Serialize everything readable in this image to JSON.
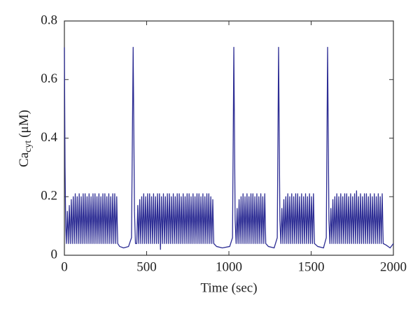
{
  "chart_data": {
    "type": "line",
    "xlabel": "Time (sec)",
    "ylabel": {
      "base": "Ca",
      "sub": "cyt",
      "unit": "(μM)"
    },
    "color": "#2d2d94",
    "xlim": [
      0,
      2000
    ],
    "xticks": [
      0,
      500,
      1000,
      1500,
      2000
    ],
    "ylim": [
      0,
      0.8
    ],
    "yticks": [
      0,
      0.2,
      0.4,
      0.6,
      0.8
    ],
    "x": [
      0,
      4,
      8,
      12,
      18,
      24,
      30,
      36,
      42,
      48,
      54,
      60,
      66,
      72,
      78,
      84,
      90,
      96,
      102,
      108,
      114,
      120,
      126,
      132,
      138,
      144,
      150,
      156,
      162,
      168,
      174,
      180,
      186,
      192,
      198,
      204,
      210,
      216,
      222,
      228,
      234,
      240,
      246,
      252,
      258,
      264,
      270,
      276,
      282,
      288,
      294,
      300,
      306,
      312,
      318,
      324,
      336,
      360,
      390,
      408,
      418,
      426,
      432,
      440,
      446,
      452,
      458,
      464,
      470,
      476,
      482,
      488,
      494,
      500,
      506,
      512,
      518,
      524,
      530,
      536,
      542,
      548,
      554,
      560,
      566,
      572,
      578,
      584,
      590,
      596,
      602,
      608,
      614,
      620,
      626,
      632,
      638,
      644,
      650,
      656,
      662,
      668,
      674,
      680,
      686,
      692,
      698,
      704,
      710,
      716,
      722,
      728,
      734,
      740,
      746,
      752,
      758,
      764,
      770,
      776,
      782,
      788,
      794,
      800,
      806,
      812,
      818,
      824,
      830,
      836,
      842,
      848,
      854,
      860,
      866,
      872,
      878,
      884,
      890,
      896,
      902,
      908,
      925,
      960,
      1005,
      1022,
      1030,
      1038,
      1044,
      1050,
      1056,
      1062,
      1068,
      1074,
      1080,
      1086,
      1092,
      1098,
      1104,
      1110,
      1116,
      1122,
      1128,
      1134,
      1140,
      1146,
      1152,
      1158,
      1164,
      1170,
      1176,
      1182,
      1188,
      1194,
      1200,
      1206,
      1212,
      1218,
      1224,
      1240,
      1275,
      1294,
      1302,
      1310,
      1316,
      1322,
      1328,
      1334,
      1340,
      1346,
      1352,
      1358,
      1364,
      1370,
      1376,
      1382,
      1388,
      1394,
      1400,
      1406,
      1412,
      1418,
      1424,
      1430,
      1436,
      1442,
      1448,
      1454,
      1460,
      1466,
      1472,
      1478,
      1484,
      1490,
      1496,
      1502,
      1508,
      1514,
      1520,
      1540,
      1575,
      1592,
      1600,
      1608,
      1614,
      1620,
      1626,
      1632,
      1638,
      1644,
      1650,
      1656,
      1662,
      1668,
      1674,
      1680,
      1686,
      1692,
      1698,
      1704,
      1710,
      1716,
      1722,
      1728,
      1734,
      1740,
      1746,
      1752,
      1758,
      1764,
      1770,
      1776,
      1782,
      1788,
      1794,
      1800,
      1806,
      1812,
      1818,
      1824,
      1830,
      1836,
      1842,
      1848,
      1854,
      1860,
      1866,
      1872,
      1878,
      1884,
      1890,
      1896,
      1902,
      1908,
      1914,
      1920,
      1926,
      1932,
      1938,
      1955,
      1980,
      2000
    ],
    "values": [
      0.71,
      0.3,
      0.1,
      0.04,
      0.15,
      0.04,
      0.17,
      0.04,
      0.19,
      0.04,
      0.2,
      0.04,
      0.21,
      0.04,
      0.2,
      0.04,
      0.21,
      0.04,
      0.2,
      0.04,
      0.21,
      0.04,
      0.21,
      0.04,
      0.2,
      0.04,
      0.21,
      0.04,
      0.2,
      0.04,
      0.21,
      0.04,
      0.21,
      0.04,
      0.2,
      0.04,
      0.21,
      0.04,
      0.2,
      0.04,
      0.21,
      0.04,
      0.21,
      0.04,
      0.2,
      0.04,
      0.21,
      0.04,
      0.2,
      0.04,
      0.21,
      0.04,
      0.21,
      0.04,
      0.2,
      0.04,
      0.03,
      0.025,
      0.03,
      0.06,
      0.71,
      0.15,
      0.04,
      0.04,
      0.17,
      0.04,
      0.19,
      0.04,
      0.2,
      0.04,
      0.21,
      0.04,
      0.2,
      0.04,
      0.21,
      0.04,
      0.21,
      0.04,
      0.2,
      0.04,
      0.21,
      0.04,
      0.2,
      0.04,
      0.21,
      0.04,
      0.21,
      0.02,
      0.2,
      0.04,
      0.21,
      0.04,
      0.2,
      0.04,
      0.21,
      0.04,
      0.21,
      0.04,
      0.2,
      0.04,
      0.21,
      0.04,
      0.2,
      0.04,
      0.21,
      0.04,
      0.21,
      0.04,
      0.2,
      0.04,
      0.21,
      0.04,
      0.2,
      0.04,
      0.21,
      0.04,
      0.21,
      0.04,
      0.2,
      0.04,
      0.21,
      0.04,
      0.2,
      0.04,
      0.21,
      0.04,
      0.21,
      0.04,
      0.2,
      0.04,
      0.21,
      0.04,
      0.2,
      0.04,
      0.21,
      0.04,
      0.21,
      0.04,
      0.2,
      0.04,
      0.19,
      0.04,
      0.03,
      0.025,
      0.03,
      0.06,
      0.71,
      0.12,
      0.04,
      0.16,
      0.04,
      0.19,
      0.04,
      0.2,
      0.04,
      0.21,
      0.04,
      0.2,
      0.04,
      0.21,
      0.04,
      0.2,
      0.04,
      0.21,
      0.04,
      0.21,
      0.04,
      0.2,
      0.04,
      0.21,
      0.04,
      0.2,
      0.04,
      0.21,
      0.04,
      0.2,
      0.04,
      0.21,
      0.04,
      0.03,
      0.025,
      0.06,
      0.71,
      0.12,
      0.04,
      0.16,
      0.04,
      0.19,
      0.04,
      0.2,
      0.04,
      0.21,
      0.04,
      0.2,
      0.04,
      0.21,
      0.04,
      0.2,
      0.04,
      0.21,
      0.04,
      0.21,
      0.04,
      0.2,
      0.04,
      0.21,
      0.04,
      0.2,
      0.04,
      0.21,
      0.04,
      0.2,
      0.04,
      0.21,
      0.04,
      0.2,
      0.04,
      0.21,
      0.04,
      0.03,
      0.025,
      0.06,
      0.71,
      0.12,
      0.04,
      0.16,
      0.04,
      0.19,
      0.04,
      0.2,
      0.04,
      0.21,
      0.04,
      0.2,
      0.04,
      0.21,
      0.04,
      0.2,
      0.04,
      0.21,
      0.04,
      0.21,
      0.04,
      0.2,
      0.04,
      0.21,
      0.04,
      0.2,
      0.04,
      0.21,
      0.04,
      0.22,
      0.04,
      0.2,
      0.04,
      0.21,
      0.04,
      0.2,
      0.04,
      0.21,
      0.04,
      0.21,
      0.04,
      0.2,
      0.04,
      0.21,
      0.04,
      0.2,
      0.04,
      0.21,
      0.04,
      0.2,
      0.04,
      0.21,
      0.04,
      0.2,
      0.04,
      0.21,
      0.04,
      0.035,
      0.025,
      0.04
    ]
  }
}
